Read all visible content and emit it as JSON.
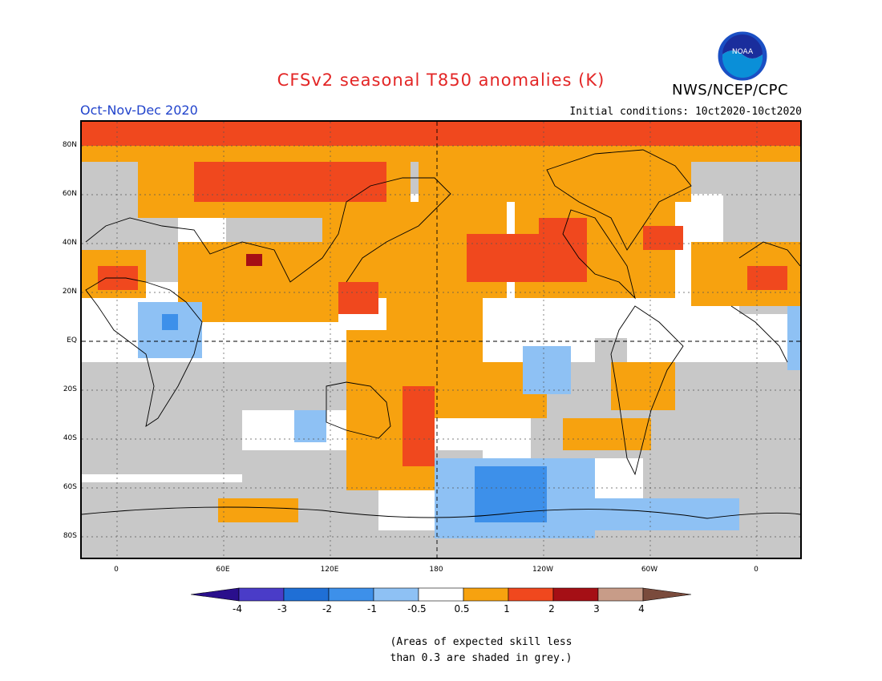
{
  "title": "CFSv2 seasonal T850 anomalies (K)",
  "season": "Oct-Nov-Dec 2020",
  "agency": "NWS/NCEP/CPC",
  "logo_text": "NOAA",
  "initial_conditions": "Initial conditions: 10ct2020-10ct2020",
  "lat_labels": [
    "80N",
    "60N",
    "40N",
    "20N",
    "EQ",
    "20S",
    "40S",
    "60S",
    "80S"
  ],
  "lon_labels": [
    "0",
    "60E",
    "120E",
    "180",
    "120W",
    "60W",
    "0"
  ],
  "colorbar": {
    "ticks": [
      "-4",
      "-3",
      "-2",
      "-1",
      "-0.5",
      "0.5",
      "1",
      "2",
      "3",
      "4"
    ],
    "colors": [
      "#2a0f8c",
      "#4a3cc8",
      "#1f6fd6",
      "#3d90ea",
      "#8ec1f4",
      "#ffffff",
      "#f7a20f",
      "#f0481e",
      "#a50f15",
      "#c89c88",
      "#7a4b3c"
    ]
  },
  "note_line1": "(Areas of expected skill less",
  "note_line2": "than 0.3 are shaded in grey.)",
  "colors": {
    "title": "#e32626",
    "season": "#2244cc",
    "grey_skill": "#c8c8c8",
    "orange": "#f7a20f",
    "red_orange": "#f0481e",
    "light_blue": "#8ec1f4",
    "mid_blue": "#3d90ea"
  }
}
